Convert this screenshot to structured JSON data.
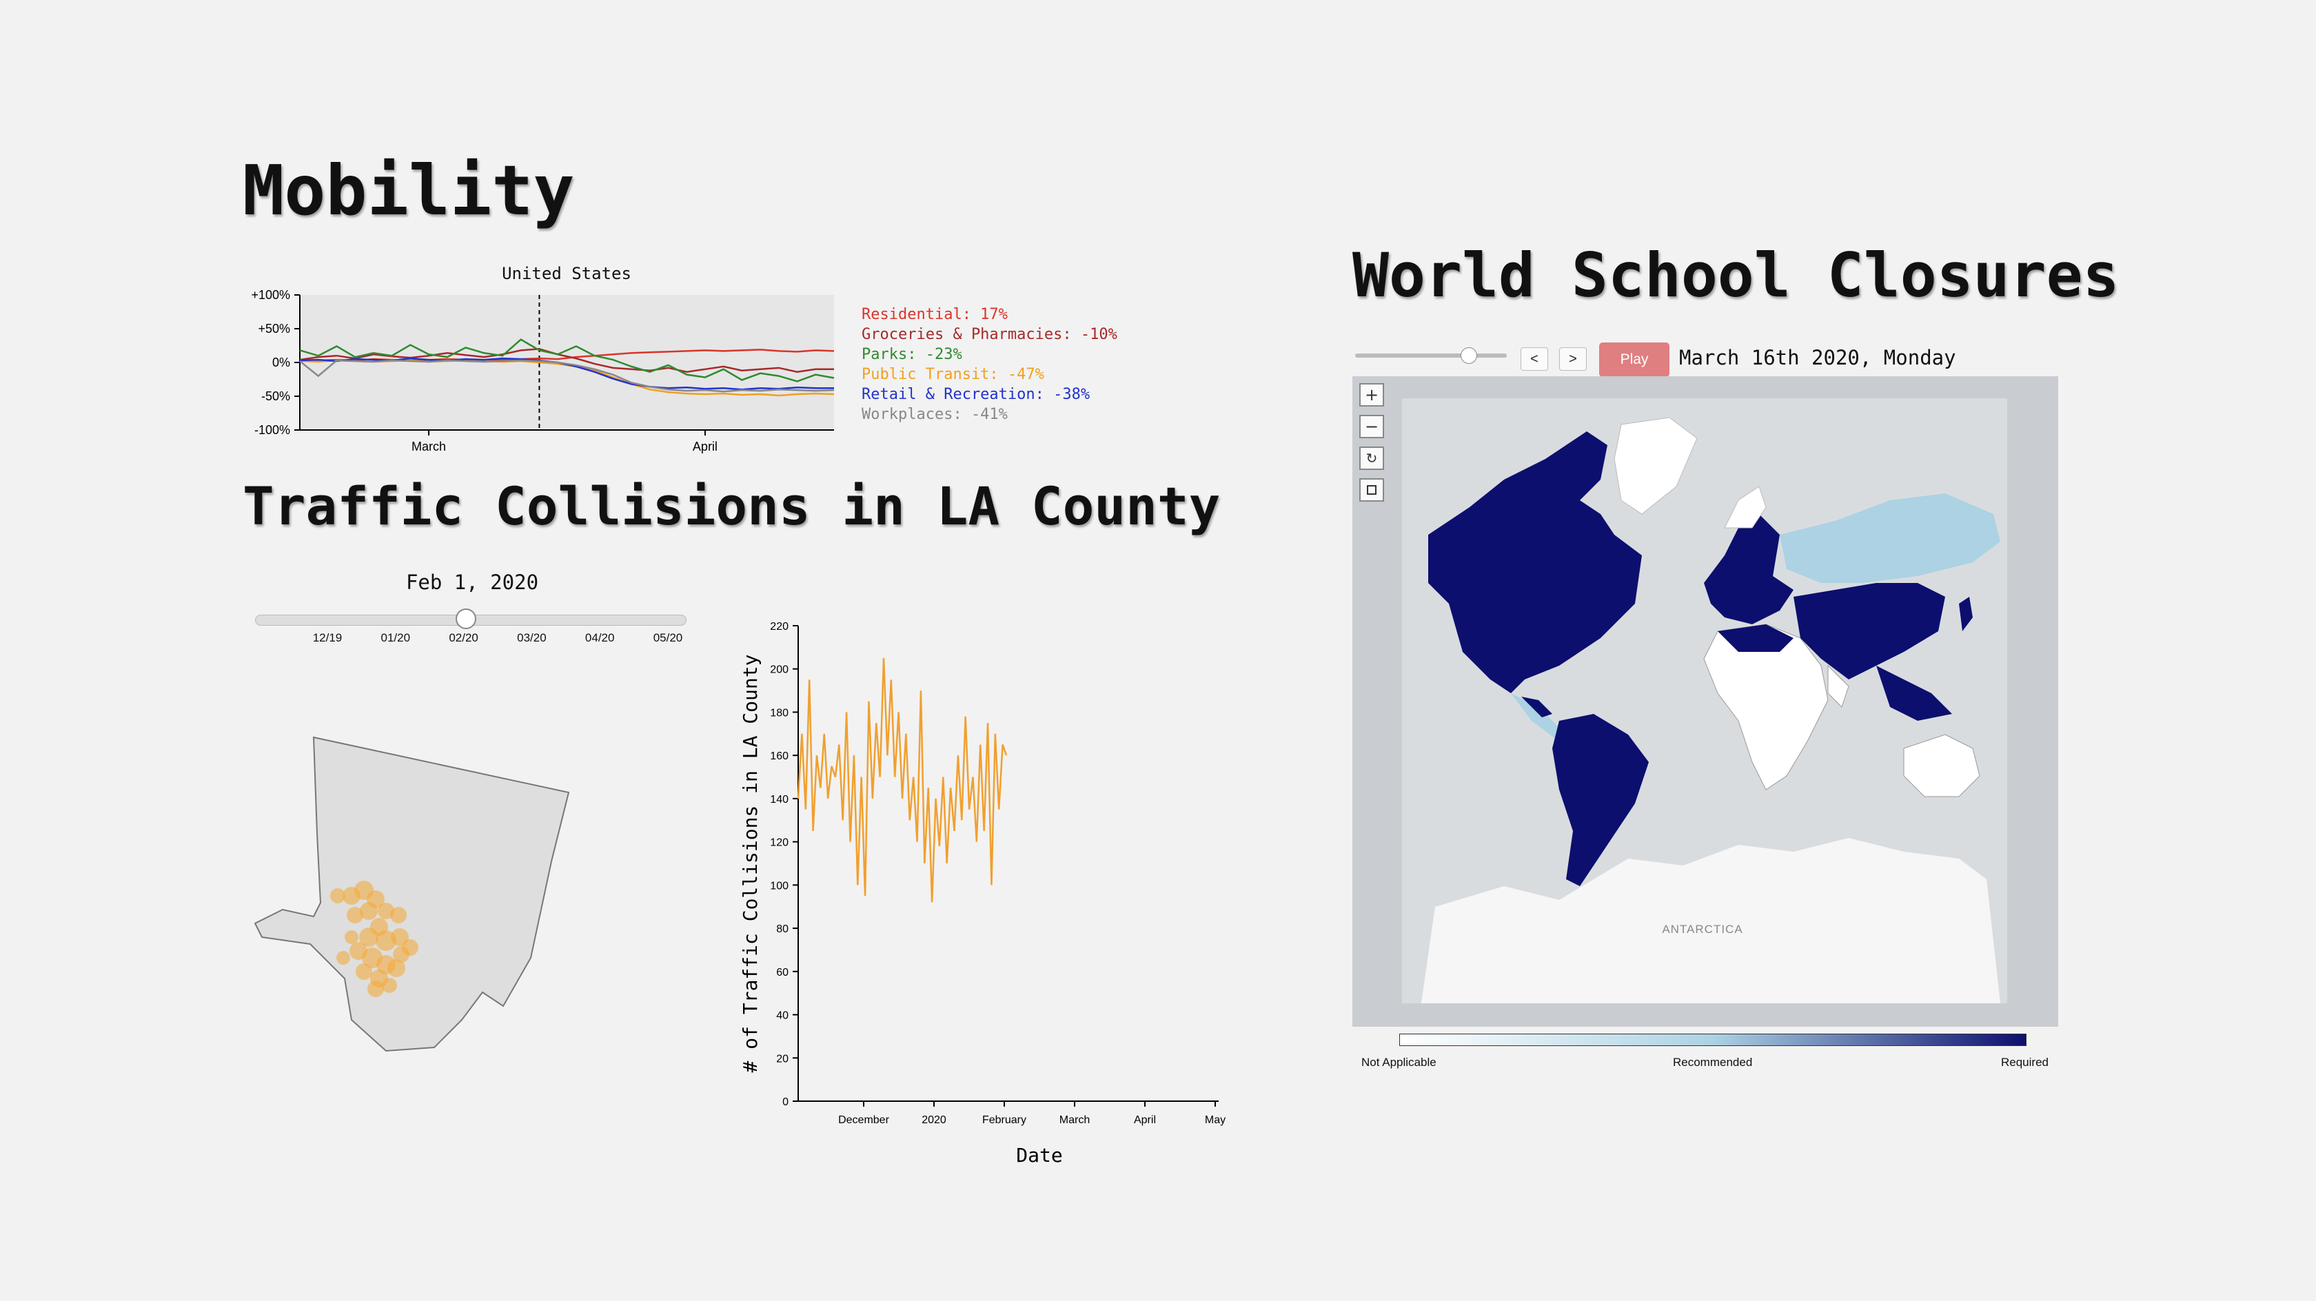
{
  "mobility": {
    "heading": "Mobility",
    "chart_title": "United States",
    "y_ticks": [
      "+100%",
      "+50%",
      "0%",
      "-50%",
      "-100%"
    ],
    "x_ticks": [
      "March",
      "April"
    ],
    "legend": [
      {
        "label": "Residential: 17%",
        "color": "#d9352b"
      },
      {
        "label": "Groceries & Pharmacies: -10%",
        "color": "#a52a2a"
      },
      {
        "label": "Parks: -23%",
        "color": "#2f8a2f"
      },
      {
        "label": "Public Transit: -47%",
        "color": "#f0a020"
      },
      {
        "label": "Retail & Recreation: -38%",
        "color": "#2233cc"
      },
      {
        "label": "Workplaces: -41%",
        "color": "#888888"
      }
    ]
  },
  "traffic": {
    "heading": "Traffic Collisions in LA County",
    "slider_date": "Feb 1, 2020",
    "slider_ticks": [
      "12/19",
      "01/20",
      "02/20",
      "03/20",
      "04/20",
      "05/20"
    ],
    "slider_value": 0.49,
    "y_axis_label": "# of Traffic Collisions in LA County",
    "x_axis_label": "Date",
    "line_color": "#f0a030"
  },
  "schools": {
    "heading": "World School Closures",
    "prev_label": "<",
    "next_label": ">",
    "play_label": "Play",
    "date_text": "March 16th 2020, Monday",
    "slider_value": 0.75,
    "antarctica_label": "ANTARCTICA",
    "legend_labels": [
      "Not Applicable",
      "Recommended",
      "Required"
    ],
    "colors": {
      "required": "#0c0f6e",
      "recommended": "#acd2e3",
      "none": "#ffffff"
    }
  },
  "chart_data": [
    {
      "type": "line",
      "title": "United States",
      "xlabel": "",
      "ylabel": "",
      "ylim": [
        -100,
        100
      ],
      "x_ticks": [
        "March",
        "April"
      ],
      "series": [
        {
          "name": "Residential",
          "color": "#d9352b",
          "values": [
            2,
            3,
            4,
            3,
            5,
            4,
            3,
            4,
            5,
            4,
            3,
            4,
            5,
            6,
            5,
            8,
            10,
            12,
            14,
            15,
            16,
            17,
            18,
            17,
            18,
            19,
            17,
            16,
            18,
            17
          ]
        },
        {
          "name": "Groceries & Pharmacies",
          "color": "#a52a2a",
          "values": [
            4,
            8,
            10,
            6,
            12,
            9,
            7,
            10,
            14,
            11,
            8,
            12,
            18,
            20,
            12,
            6,
            -2,
            -8,
            -10,
            -12,
            -8,
            -14,
            -10,
            -6,
            -12,
            -10,
            -8,
            -14,
            -10,
            -10
          ]
        },
        {
          "name": "Parks",
          "color": "#2f8a2f",
          "values": [
            18,
            10,
            24,
            8,
            14,
            10,
            26,
            12,
            8,
            22,
            14,
            10,
            34,
            18,
            12,
            24,
            10,
            4,
            -6,
            -14,
            -4,
            -18,
            -22,
            -10,
            -26,
            -16,
            -20,
            -28,
            -18,
            -23
          ]
        },
        {
          "name": "Public Transit",
          "color": "#f0a020",
          "values": [
            2,
            1,
            3,
            2,
            1,
            2,
            3,
            1,
            2,
            3,
            2,
            1,
            2,
            0,
            -2,
            -6,
            -12,
            -22,
            -32,
            -40,
            -44,
            -46,
            -47,
            -46,
            -48,
            -47,
            -49,
            -47,
            -46,
            -47
          ]
        },
        {
          "name": "Retail & Recreation",
          "color": "#2233cc",
          "values": [
            3,
            4,
            2,
            5,
            4,
            3,
            6,
            4,
            3,
            5,
            4,
            6,
            5,
            3,
            0,
            -6,
            -14,
            -24,
            -32,
            -36,
            -38,
            -37,
            -39,
            -38,
            -40,
            -38,
            -39,
            -37,
            -38,
            -38
          ]
        },
        {
          "name": "Workplaces",
          "color": "#888888",
          "values": [
            2,
            -20,
            3,
            2,
            1,
            3,
            2,
            1,
            3,
            2,
            1,
            2,
            3,
            2,
            0,
            -4,
            -10,
            -18,
            -30,
            -36,
            -40,
            -42,
            -41,
            -43,
            -41,
            -42,
            -40,
            -41,
            -42,
            -41
          ]
        }
      ],
      "marker_x_index": 13
    },
    {
      "type": "line",
      "title": "",
      "xlabel": "Date",
      "ylabel": "# of Traffic Collisions in LA County",
      "ylim": [
        0,
        220
      ],
      "x_ticks": [
        "December",
        "2020",
        "February",
        "March",
        "April",
        "May"
      ],
      "y_ticks": [
        0,
        20,
        40,
        60,
        80,
        100,
        120,
        140,
        160,
        180,
        200,
        220
      ],
      "series": [
        {
          "name": "",
          "values": [
            140,
            170,
            135,
            195,
            125,
            160,
            145,
            170,
            140,
            155,
            150,
            165,
            130,
            180,
            120,
            160,
            100,
            150,
            95,
            185,
            140,
            175,
            150,
            205,
            160,
            195,
            150,
            180,
            140,
            170,
            130,
            150,
            120,
            190,
            110,
            145,
            92,
            140,
            118,
            150,
            110,
            145,
            125,
            160,
            130,
            178,
            135,
            150,
            120,
            165,
            125,
            175,
            100,
            170,
            135,
            165,
            160
          ]
        }
      ]
    }
  ]
}
